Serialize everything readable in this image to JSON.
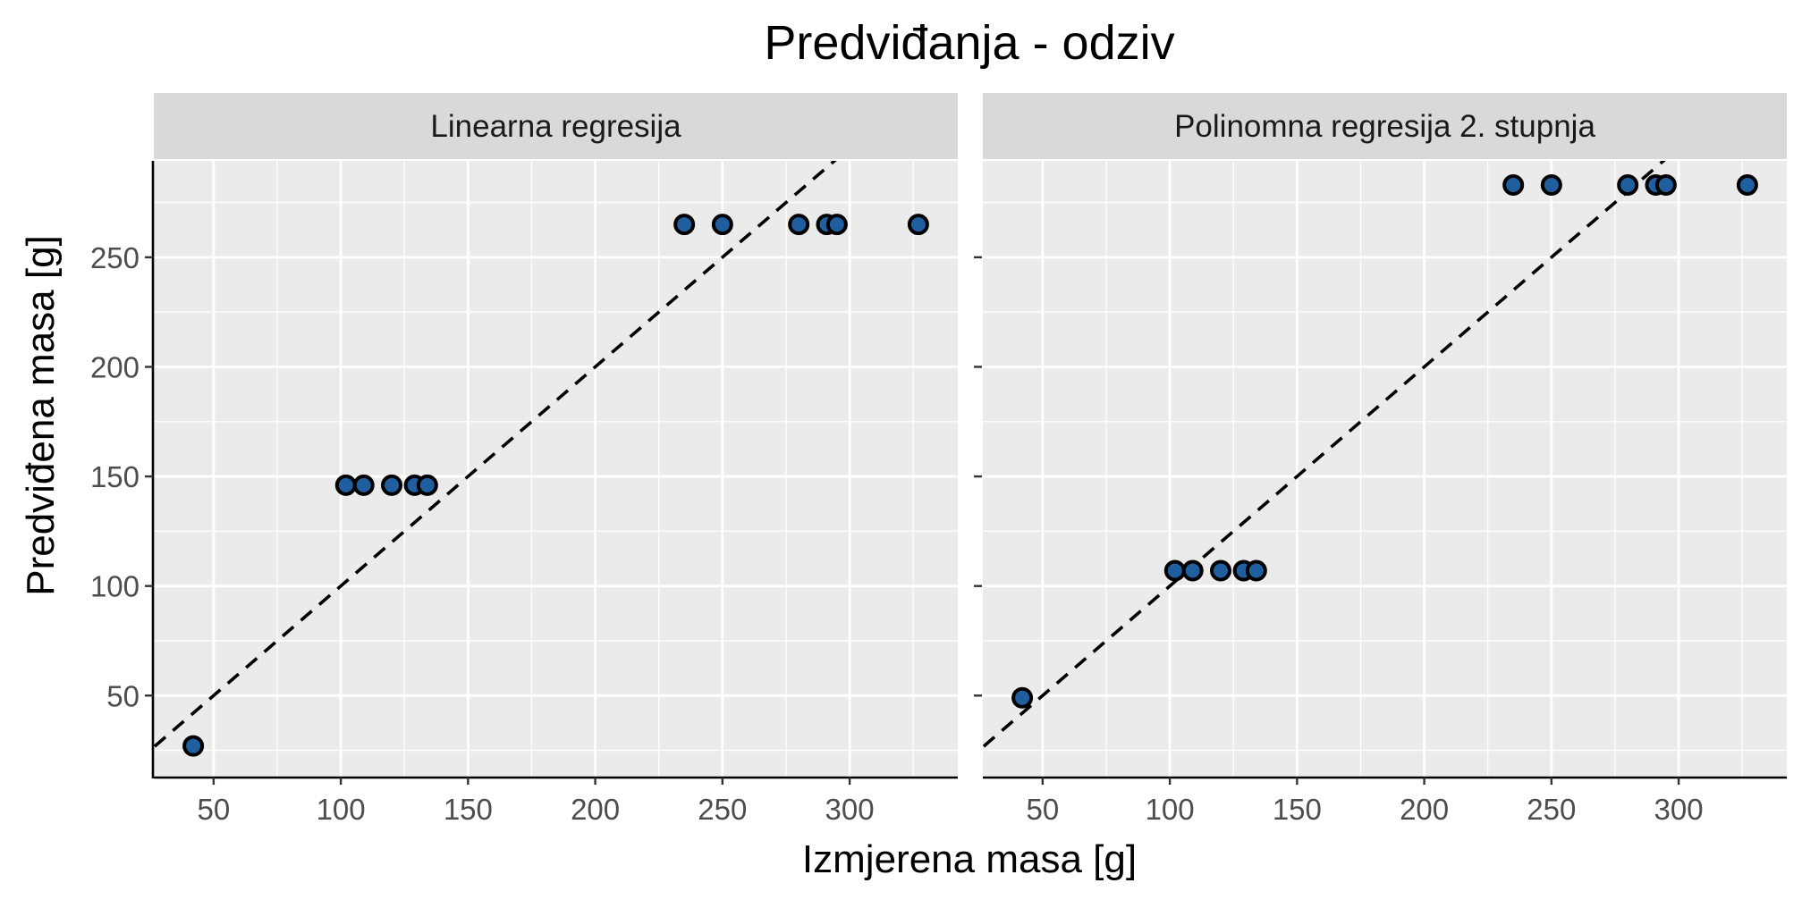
{
  "chart_data": {
    "type": "scatter",
    "title": "Predviđanja - odziv",
    "xlabel": "Izmjerena masa [g]",
    "ylabel": "Predviđena masa [g]",
    "xlim": [
      26.5,
      342.5
    ],
    "ylim": [
      13,
      294
    ],
    "x_ticks": [
      50,
      100,
      150,
      200,
      250,
      300
    ],
    "y_ticks": [
      50,
      100,
      150,
      200,
      250
    ],
    "grid": true,
    "reference_line": "y = x (dashed)",
    "point_fill": "#1f5fa0",
    "point_stroke": "#000000",
    "panel_background": "#ebebeb",
    "strip_background": "#d9d9d9",
    "panels": [
      {
        "label": "Linearna regresija",
        "x": [
          42,
          102,
          109,
          120,
          129,
          134,
          235,
          250,
          280,
          291,
          295,
          327
        ],
        "y": [
          27,
          146,
          146,
          146,
          146,
          146,
          265,
          265,
          265,
          265,
          265,
          265
        ]
      },
      {
        "label": "Polinomna regresija 2. stupnja",
        "x": [
          42,
          102,
          109,
          120,
          129,
          134,
          235,
          250,
          280,
          291,
          295,
          327
        ],
        "y": [
          49,
          107,
          107,
          107,
          107,
          107,
          283,
          283,
          283,
          283,
          283,
          283
        ]
      }
    ]
  }
}
